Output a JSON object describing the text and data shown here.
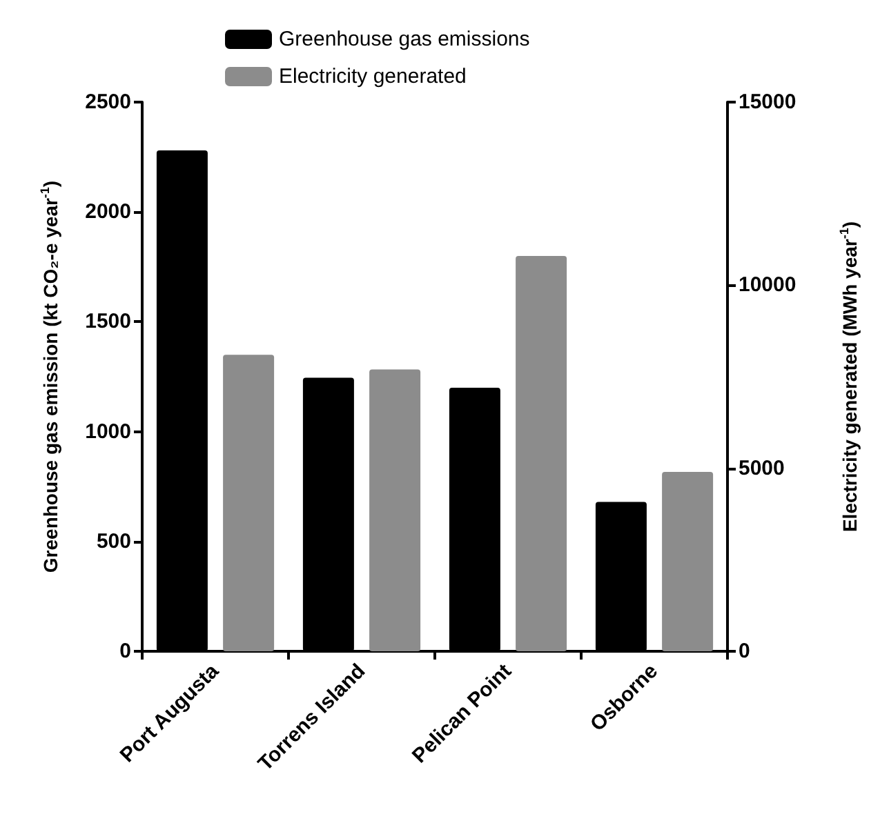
{
  "chart_data": {
    "type": "bar",
    "categories": [
      "Port Augusta",
      "Torrens Island",
      "Pelican Point",
      "Osborne"
    ],
    "series": [
      {
        "name": "Greenhouse gas emissions",
        "color": "#000000",
        "values": [
          2280,
          1245,
          1200,
          680
        ]
      },
      {
        "name": "Electricity generated",
        "color": "#8c8c8c",
        "values": [
          8100,
          7700,
          10800,
          4900
        ],
        "axis": "y2"
      }
    ],
    "ylabel": "Greenhouse gas emission (kt CO₂-e year$^{-1}$)",
    "y2label": "Electricity generated (MWh year$^{-1}$)",
    "ylim": [
      0,
      2500
    ],
    "yticks": [
      0,
      500,
      1000,
      1500,
      2000,
      2500
    ],
    "y2lim": [
      0,
      15000
    ],
    "y2ticks": [
      0,
      5000,
      10000,
      15000
    ],
    "grid": false,
    "legend": "top"
  }
}
